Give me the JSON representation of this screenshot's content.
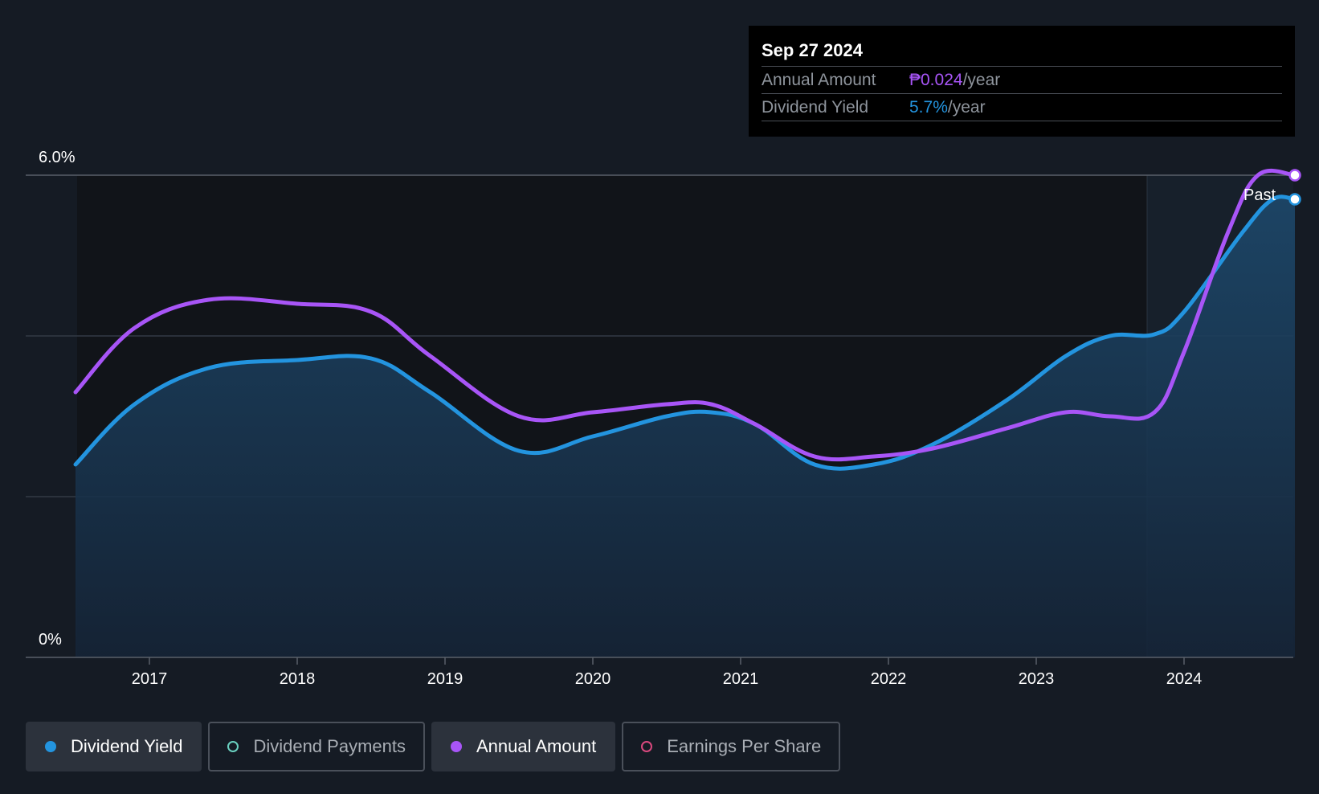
{
  "tooltip": {
    "date": "Sep 27 2024",
    "rows": [
      {
        "label": "Annual Amount",
        "value": "₱0.024",
        "unit": "/year",
        "color": "#a855f7"
      },
      {
        "label": "Dividend Yield",
        "value": "5.7%",
        "unit": "/year",
        "color": "#2394df"
      }
    ]
  },
  "legend": [
    {
      "label": "Dividend Yield",
      "color": "#2394df",
      "active": true,
      "filled": true
    },
    {
      "label": "Dividend Payments",
      "color": "#6ad1c0",
      "active": false,
      "filled": false
    },
    {
      "label": "Annual Amount",
      "color": "#a855f7",
      "active": true,
      "filled": true
    },
    {
      "label": "Earnings Per Share",
      "color": "#d9487e",
      "active": false,
      "filled": false
    }
  ],
  "colors": {
    "background": "#151b24",
    "yield": "#2394df",
    "amount": "#a855f7",
    "grid": "#3a404a"
  },
  "chart_data": {
    "type": "line",
    "ylabels": [
      "6.0%",
      "0%"
    ],
    "ylim": [
      0,
      6
    ],
    "y_gridlines": [
      2,
      4,
      6
    ],
    "x_ticks": [
      "2017",
      "2018",
      "2019",
      "2020",
      "2021",
      "2022",
      "2023",
      "2024"
    ],
    "x_tick_values": [
      2017,
      2018,
      2019,
      2020,
      2021,
      2022,
      2023,
      2024
    ],
    "xlim": [
      2016.2,
      2024.75
    ],
    "past_region_start": 2023.75,
    "past_label": "Past",
    "series": [
      {
        "name": "Dividend Yield",
        "color": "#2394df",
        "fill": true,
        "points": [
          [
            2016.5,
            2.4
          ],
          [
            2016.9,
            3.15
          ],
          [
            2017.4,
            3.6
          ],
          [
            2018.0,
            3.7
          ],
          [
            2018.5,
            3.72
          ],
          [
            2018.9,
            3.3
          ],
          [
            2019.5,
            2.57
          ],
          [
            2020.0,
            2.75
          ],
          [
            2020.5,
            3.0
          ],
          [
            2020.8,
            3.05
          ],
          [
            2021.1,
            2.9
          ],
          [
            2021.5,
            2.4
          ],
          [
            2021.9,
            2.4
          ],
          [
            2022.3,
            2.65
          ],
          [
            2022.8,
            3.2
          ],
          [
            2023.2,
            3.75
          ],
          [
            2023.5,
            4.0
          ],
          [
            2023.8,
            4.02
          ],
          [
            2024.0,
            4.3
          ],
          [
            2024.4,
            5.3
          ],
          [
            2024.6,
            5.7
          ],
          [
            2024.75,
            5.7
          ]
        ]
      },
      {
        "name": "Annual Amount",
        "color": "#a855f7",
        "fill": false,
        "points": [
          [
            2016.5,
            3.3
          ],
          [
            2016.9,
            4.1
          ],
          [
            2017.4,
            4.45
          ],
          [
            2018.0,
            4.4
          ],
          [
            2018.5,
            4.3
          ],
          [
            2018.9,
            3.75
          ],
          [
            2019.5,
            3.0
          ],
          [
            2020.0,
            3.05
          ],
          [
            2020.5,
            3.15
          ],
          [
            2020.8,
            3.15
          ],
          [
            2021.1,
            2.9
          ],
          [
            2021.5,
            2.5
          ],
          [
            2021.9,
            2.5
          ],
          [
            2022.3,
            2.6
          ],
          [
            2022.8,
            2.85
          ],
          [
            2023.2,
            3.05
          ],
          [
            2023.5,
            3.0
          ],
          [
            2023.8,
            3.05
          ],
          [
            2024.0,
            3.8
          ],
          [
            2024.3,
            5.3
          ],
          [
            2024.5,
            6.0
          ],
          [
            2024.75,
            6.0
          ]
        ]
      }
    ]
  }
}
